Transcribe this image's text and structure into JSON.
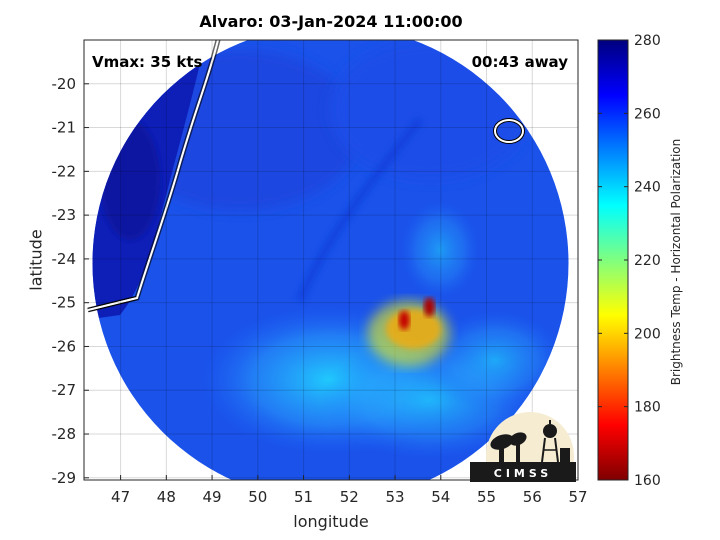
{
  "chart_data": {
    "type": "heatmap",
    "title": "Alvaro: 03-Jan-2024 11:00:00",
    "xlabel": "longitude",
    "ylabel": "latitude",
    "xlim": [
      46.2,
      57.0
    ],
    "ylim": [
      -29.05,
      -19.0
    ],
    "x_ticks": [
      47,
      48,
      49,
      50,
      51,
      52,
      53,
      54,
      55,
      56,
      57
    ],
    "y_ticks": [
      -20,
      -21,
      -22,
      -23,
      -24,
      -25,
      -26,
      -27,
      -28,
      -29
    ],
    "grid": true,
    "colorbar": {
      "label": "Brightness Temp - Horizontal Polarization",
      "range": [
        160,
        280
      ],
      "ticks": [
        160,
        180,
        200,
        220,
        240,
        260,
        280
      ],
      "colormap": "jet"
    },
    "scan_disk": {
      "center": [
        51.5,
        -24.05
      ],
      "radius_deg": 5.2
    },
    "coldest_cores": [
      {
        "lon": 53.75,
        "lat": -25.1,
        "tb": 165
      },
      {
        "lon": 53.2,
        "lat": -25.4,
        "tb": 168
      }
    ],
    "storm_shield": {
      "lon": 53.3,
      "lat": -25.7,
      "tb": 205
    },
    "annotations": {
      "vmax": "Vmax: 35 kts",
      "time_offset": "00:43 away"
    },
    "logo_text": "CIMSS"
  }
}
